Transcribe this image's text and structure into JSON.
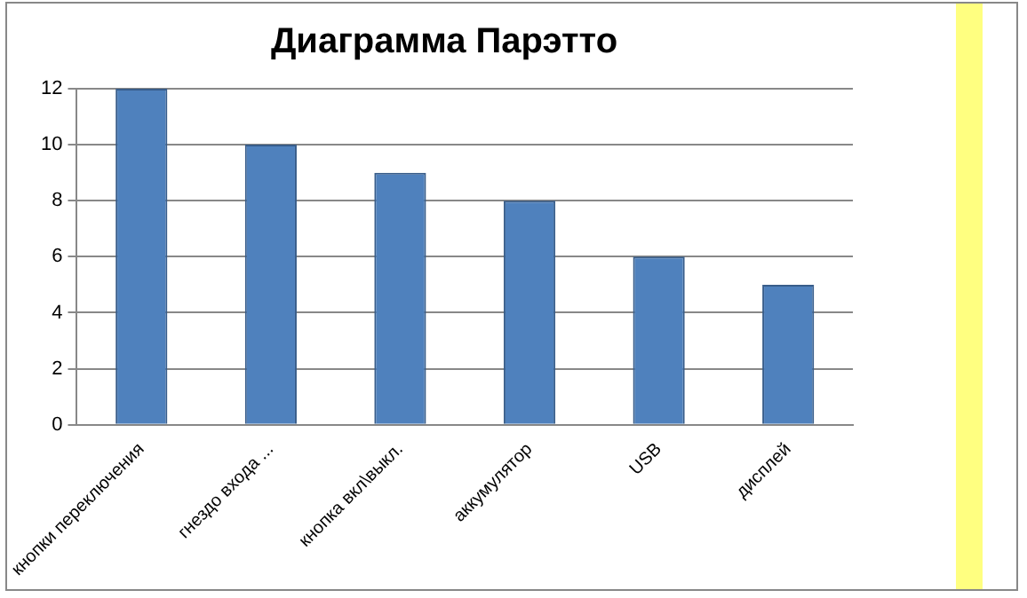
{
  "chart_data": {
    "type": "bar",
    "title": "Диаграмма Парэтто",
    "categories": [
      "кнопки переключения",
      "гнездо входа ...",
      "кнопка вкл\\выкл.",
      "аккумулятор",
      "USB",
      "дисплей"
    ],
    "values": [
      12,
      10,
      9,
      8,
      6,
      5
    ],
    "color": "#4f81bd",
    "ylim": [
      0,
      12
    ],
    "yticks": [
      0,
      2,
      4,
      6,
      8,
      10,
      12
    ],
    "grid": "y"
  }
}
